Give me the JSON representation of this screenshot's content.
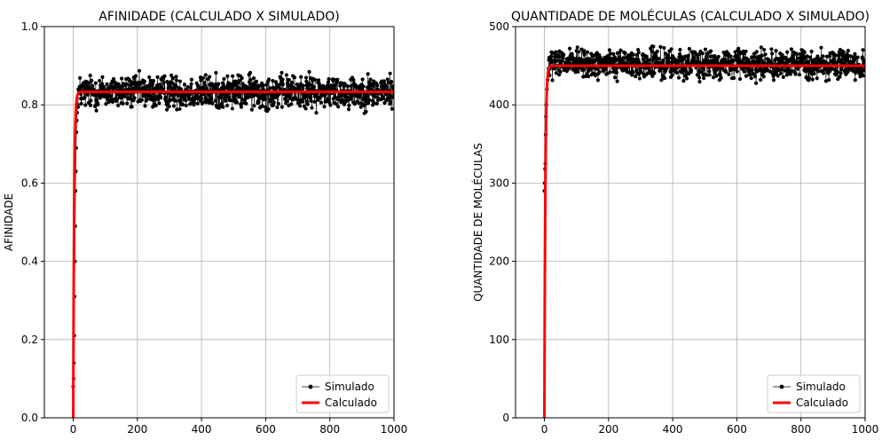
{
  "chart_data": [
    {
      "type": "line",
      "title": "AFINIDADE  (CALCULADO X SIMULADO)",
      "xlabel": "",
      "ylabel": "AFINIDADE",
      "xlim": [
        -90,
        1000
      ],
      "ylim": [
        0,
        1.0
      ],
      "xticks": [
        0,
        200,
        400,
        600,
        800,
        1000
      ],
      "yticks": [
        0.0,
        0.2,
        0.4,
        0.6,
        0.8,
        1.0
      ],
      "ytick_labels": [
        "0.0",
        "0.2",
        "0.4",
        "0.6",
        "0.8",
        "1.0"
      ],
      "grid": true,
      "legend": "lower-right",
      "plateau": 0.833,
      "series": [
        {
          "name": "Simulado",
          "style": "markers-line",
          "color": "#000000",
          "x_range": [
            0,
            1000
          ],
          "rise": [
            [
              0,
              0.08
            ],
            [
              1,
              0.1
            ],
            [
              2,
              0.14
            ],
            [
              3,
              0.21
            ],
            [
              4,
              0.31
            ],
            [
              5,
              0.4
            ],
            [
              6,
              0.49
            ],
            [
              7,
              0.58
            ],
            [
              8,
              0.63
            ],
            [
              9,
              0.69
            ],
            [
              10,
              0.73
            ],
            [
              11,
              0.76
            ],
            [
              12,
              0.78
            ],
            [
              14,
              0.8
            ]
          ],
          "steady_mean": 0.833,
          "steady_spread": 0.07
        },
        {
          "name": "Calculado",
          "style": "line",
          "color": "#ff0000",
          "x_range": [
            0,
            1000
          ],
          "rate": 0.35,
          "asymptote": 0.833
        }
      ]
    },
    {
      "type": "line",
      "title": "QUANTIDADE DE MOLÉCULAS (CALCULADO X SIMULADO)",
      "xlabel": "",
      "ylabel": "QUANTIDADE DE MOLÉCULAS",
      "xlim": [
        -90,
        1000
      ],
      "ylim": [
        0,
        500
      ],
      "xticks": [
        0,
        200,
        400,
        600,
        800,
        1000
      ],
      "yticks": [
        0,
        100,
        200,
        300,
        400,
        500
      ],
      "ytick_labels": [
        "0",
        "100",
        "200",
        "300",
        "400",
        "500"
      ],
      "grid": true,
      "legend": "lower-right",
      "plateau": 450,
      "series": [
        {
          "name": "Simulado",
          "style": "markers-line",
          "color": "#000000",
          "x_range": [
            0,
            1000
          ],
          "rise": [
            [
              0,
              290
            ],
            [
              1,
              300
            ],
            [
              2,
              318
            ],
            [
              3,
              325
            ],
            [
              4,
              362
            ],
            [
              5,
              385
            ],
            [
              6,
              400
            ],
            [
              8,
              420
            ],
            [
              10,
              432
            ],
            [
              12,
              440
            ]
          ],
          "steady_mean": 452,
          "steady_spread": 30
        },
        {
          "name": "Calculado",
          "style": "line",
          "color": "#ff0000",
          "x_range": [
            0,
            1000
          ],
          "rate": 0.35,
          "asymptote": 450
        }
      ]
    }
  ]
}
